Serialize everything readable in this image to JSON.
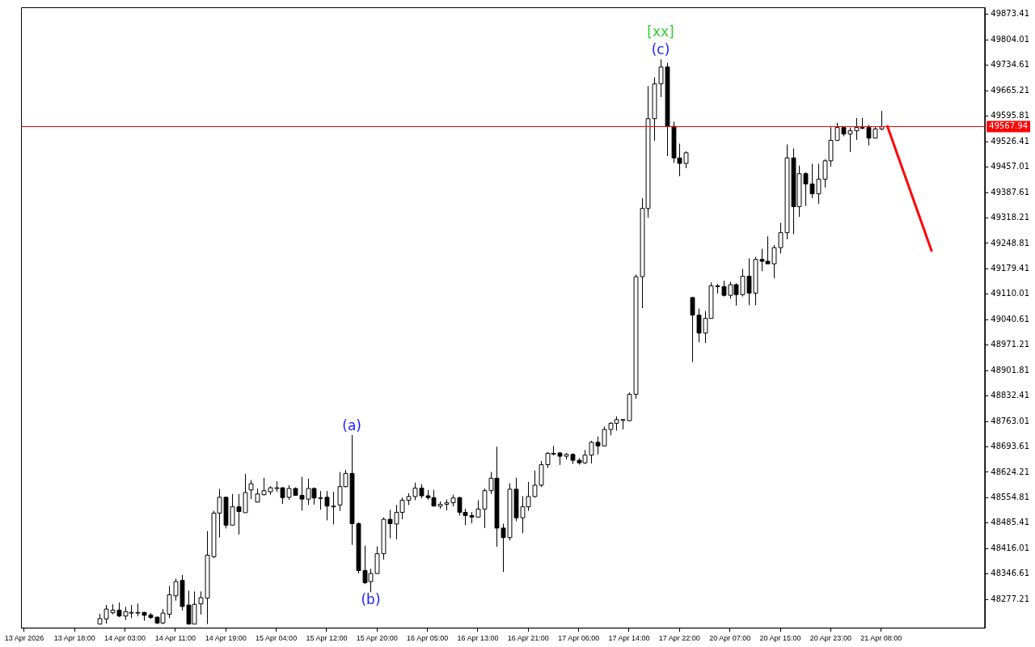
{
  "chart_data": {
    "type": "candlestick",
    "categories": [
      "13 Apr 2026",
      null,
      null,
      null,
      null,
      null,
      null,
      null,
      "13 Apr 18:00",
      null,
      null,
      null,
      null,
      null,
      null,
      null,
      "14 Apr 03:00",
      null,
      null,
      null,
      null,
      null,
      null,
      null,
      "14 Apr 11:00",
      null,
      null,
      null,
      null,
      null,
      null,
      null,
      "14 Apr 19:00",
      null,
      null,
      null,
      null,
      null,
      null,
      null,
      "15 Apr 04:00",
      null,
      null,
      null,
      null,
      null,
      null,
      null,
      "15 Apr 12:00",
      null,
      null,
      null,
      null,
      null,
      null,
      null,
      "15 Apr 20:00",
      null,
      null,
      null,
      null,
      null,
      null,
      null,
      "16 Apr 05:00",
      null,
      null,
      null,
      null,
      null,
      null,
      null,
      "16 Apr 13:00",
      null,
      null,
      null,
      null,
      null,
      null,
      null,
      "16 Apr 21:00",
      null,
      null,
      null,
      null,
      null,
      null,
      null,
      "17 Apr 06:00",
      null,
      null,
      null,
      null,
      null,
      null,
      null,
      "17 Apr 14:00",
      null,
      null,
      null,
      null,
      null,
      null,
      null,
      "17 Apr 22:00",
      null,
      null,
      null,
      null,
      null,
      null,
      null,
      "20 Apr 07:00",
      null,
      null,
      null,
      null,
      null,
      null,
      null,
      "20 Apr 15:00",
      null,
      null,
      null,
      null,
      null,
      null,
      null,
      "20 Apr 23:00",
      null,
      null,
      null,
      null,
      null,
      null,
      null,
      "21 Apr 08:00",
      null,
      null,
      null,
      null,
      null,
      null,
      null,
      null,
      null,
      null,
      null,
      null,
      null,
      null,
      null,
      null
    ],
    "ohlc": [
      null,
      null,
      null,
      null,
      null,
      null,
      null,
      null,
      null,
      null,
      null,
      null,
      [
        48210,
        48238,
        48210,
        48225
      ],
      [
        48224,
        48262,
        48211,
        48251
      ],
      [
        48241,
        48264,
        48237,
        48248
      ],
      [
        48248,
        48269,
        48229,
        48232
      ],
      [
        48232,
        48257,
        48221,
        48244
      ],
      [
        48242,
        48262,
        48226,
        48242
      ],
      [
        48242,
        48266,
        48231,
        48242
      ],
      [
        48242,
        48243,
        48219,
        48234
      ],
      [
        48235,
        48240,
        48224,
        48228
      ],
      [
        48229,
        48230,
        48210,
        48213
      ],
      [
        48213,
        48251,
        48210,
        48240
      ],
      [
        48237,
        48314,
        48226,
        48290
      ],
      [
        48287,
        48334,
        48274,
        48326
      ],
      [
        48329,
        48344,
        48247,
        48258
      ],
      [
        48262,
        48301,
        48210,
        48210
      ],
      [
        48210,
        48299,
        48210,
        48264
      ],
      [
        48265,
        48299,
        48236,
        48282
      ],
      [
        48281,
        48464,
        48210,
        48398
      ],
      [
        48394,
        48519,
        48390,
        48513
      ],
      [
        48513,
        48579,
        48446,
        48556
      ],
      [
        48556,
        48557,
        48471,
        48480
      ],
      [
        48480,
        48565,
        48480,
        48530
      ],
      [
        48530,
        48565,
        48454,
        48517
      ],
      [
        48514,
        48620,
        48514,
        48569
      ],
      [
        48576,
        48603,
        48551,
        48593
      ],
      [
        48543,
        48580,
        48542,
        48565
      ],
      [
        48563,
        48609,
        48561,
        48574
      ],
      [
        48571,
        48586,
        48563,
        48582
      ],
      [
        48582,
        48600,
        48571,
        48582
      ],
      [
        48582,
        48583,
        48538,
        48555
      ],
      [
        48556,
        48589,
        48549,
        48580
      ],
      [
        48580,
        48583,
        48560,
        48561
      ],
      [
        48561,
        48612,
        48520,
        48551
      ],
      [
        48551,
        48607,
        48535,
        48580
      ],
      [
        48580,
        48583,
        48536,
        48554
      ],
      [
        48555,
        48573,
        48522,
        48555
      ],
      [
        48556,
        48573,
        48493,
        48532
      ],
      [
        48532,
        48571,
        48482,
        48532
      ],
      [
        48535,
        48625,
        48519,
        48585
      ],
      [
        48585,
        48631,
        48583,
        48621
      ],
      [
        48621,
        48726,
        48426,
        48484
      ],
      [
        48484,
        48488,
        48348,
        48356
      ],
      [
        48356,
        48424,
        48319,
        48323
      ],
      [
        48326,
        48361,
        48297,
        48348
      ],
      [
        48348,
        48422,
        48348,
        48402
      ],
      [
        48402,
        48501,
        48386,
        48496
      ],
      [
        48496,
        48522,
        48444,
        48484
      ],
      [
        48483,
        48535,
        48441,
        48515
      ],
      [
        48515,
        48555,
        48496,
        48548
      ],
      [
        48548,
        48567,
        48535,
        48558
      ],
      [
        48558,
        48596,
        48548,
        48581
      ],
      [
        48581,
        48592,
        48553,
        48560
      ],
      [
        48560,
        48576,
        48549,
        48555
      ],
      [
        48555,
        48576,
        48532,
        48532
      ],
      [
        48532,
        48545,
        48525,
        48537
      ],
      [
        48537,
        48550,
        48520,
        48541
      ],
      [
        48541,
        48563,
        48531,
        48554
      ],
      [
        48555,
        48558,
        48506,
        48515
      ],
      [
        48515,
        48525,
        48480,
        48506
      ],
      [
        48506,
        48516,
        48485,
        48502
      ],
      [
        48502,
        48548,
        48502,
        48524
      ],
      [
        48524,
        48580,
        48472,
        48574
      ],
      [
        48574,
        48625,
        48565,
        48608
      ],
      [
        48608,
        48694,
        48421,
        48472
      ],
      [
        48472,
        48484,
        48352,
        48446
      ],
      [
        48446,
        48594,
        48438,
        48578
      ],
      [
        48578,
        48609,
        48491,
        48500
      ],
      [
        48500,
        48559,
        48458,
        48530
      ],
      [
        48530,
        48598,
        48519,
        48558
      ],
      [
        48558,
        48629,
        48555,
        48589
      ],
      [
        48589,
        48655,
        48584,
        48645
      ],
      [
        48645,
        48679,
        48636,
        48676
      ],
      [
        48676,
        48696,
        48670,
        48676
      ],
      [
        48677,
        48679,
        48644,
        48668
      ],
      [
        48668,
        48677,
        48659,
        48673
      ],
      [
        48673,
        48676,
        48647,
        48657
      ],
      [
        48657,
        48663,
        48645,
        48650
      ],
      [
        48650,
        48685,
        48647,
        48671
      ],
      [
        48671,
        48710,
        48648,
        48706
      ],
      [
        48706,
        48722,
        48673,
        48696
      ],
      [
        48696,
        48749,
        48696,
        48741
      ],
      [
        48741,
        48761,
        48725,
        48758
      ],
      [
        48758,
        48777,
        48738,
        48768
      ],
      [
        48768,
        48769,
        48741,
        48768
      ],
      [
        48765,
        48842,
        48763,
        48837
      ],
      [
        48837,
        49164,
        48825,
        49158
      ],
      [
        49158,
        49372,
        49072,
        49344
      ],
      [
        49344,
        49678,
        49319,
        49589
      ],
      [
        49589,
        49702,
        49529,
        49684
      ],
      [
        49684,
        49751,
        49648,
        49730
      ],
      [
        49730,
        49742,
        49487,
        49568
      ],
      [
        49568,
        49581,
        49468,
        49482
      ],
      [
        49482,
        49521,
        49432,
        49467
      ],
      [
        49467,
        49500,
        49454,
        49496
      ],
      [
        49101,
        49102,
        48925,
        49053
      ],
      [
        49053,
        49071,
        48979,
        49004
      ],
      [
        49004,
        49064,
        48977,
        49044
      ],
      [
        49044,
        49142,
        49044,
        49133
      ],
      [
        49133,
        49138,
        49112,
        49133
      ],
      [
        49131,
        49147,
        49104,
        49107
      ],
      [
        49107,
        49144,
        49098,
        49136
      ],
      [
        49136,
        49140,
        49079,
        49109
      ],
      [
        49109,
        49179,
        49104,
        49159
      ],
      [
        49159,
        49208,
        49080,
        49113
      ],
      [
        49113,
        49212,
        49080,
        49205
      ],
      [
        49205,
        49234,
        49173,
        49200
      ],
      [
        49200,
        49268,
        49193,
        49193
      ],
      [
        49193,
        49244,
        49154,
        49237
      ],
      [
        49237,
        49305,
        49221,
        49278
      ],
      [
        49278,
        49519,
        49260,
        49482
      ],
      [
        49482,
        49508,
        49274,
        49349
      ],
      [
        49349,
        49461,
        49321,
        49439
      ],
      [
        49439,
        49443,
        49351,
        49411
      ],
      [
        49411,
        49466,
        49372,
        49384
      ],
      [
        49384,
        49466,
        49357,
        49424
      ],
      [
        49424,
        49478,
        49401,
        49474
      ],
      [
        49474,
        49566,
        49458,
        49530
      ],
      [
        49530,
        49578,
        49530,
        49565
      ],
      [
        49565,
        49567,
        49541,
        49547
      ],
      [
        49547,
        49565,
        49498,
        49556
      ],
      [
        49556,
        49591,
        49531,
        49565
      ],
      [
        49565,
        49591,
        49560,
        49565
      ],
      [
        49565,
        49572,
        49516,
        49536
      ],
      [
        49536,
        49567,
        49536,
        49561
      ],
      [
        49561,
        49610,
        49557,
        49567
      ],
      null,
      null,
      null,
      null,
      null,
      null,
      null,
      null,
      null,
      null,
      null,
      null,
      null,
      null,
      null,
      null
    ],
    "series": [
      {
        "type": "line",
        "color": "#ff0000",
        "values": [
          null,
          null,
          null,
          null,
          null,
          null,
          null,
          null,
          null,
          null,
          null,
          null,
          null,
          null,
          null,
          null,
          null,
          null,
          null,
          null,
          null,
          null,
          null,
          null,
          null,
          null,
          null,
          null,
          null,
          null,
          null,
          null,
          null,
          null,
          null,
          null,
          null,
          null,
          null,
          null,
          null,
          null,
          null,
          null,
          null,
          null,
          null,
          null,
          null,
          null,
          null,
          null,
          null,
          null,
          null,
          null,
          null,
          null,
          null,
          null,
          null,
          null,
          null,
          null,
          null,
          null,
          null,
          null,
          null,
          null,
          null,
          null,
          null,
          null,
          null,
          null,
          null,
          null,
          null,
          null,
          null,
          null,
          null,
          null,
          null,
          null,
          null,
          null,
          null,
          null,
          null,
          null,
          null,
          null,
          null,
          null,
          null,
          null,
          null,
          null,
          null,
          null,
          null,
          null,
          null,
          null,
          null,
          null,
          null,
          null,
          null,
          null,
          null,
          null,
          null,
          null,
          null,
          null,
          null,
          null,
          null,
          null,
          null,
          null,
          null,
          null,
          null,
          null,
          null,
          null,
          null,
          null,
          null,
          null,
          null,
          null,
          null,
          49568,
          null,
          null,
          null,
          null,
          null,
          null,
          49229,
          null,
          null,
          null,
          null,
          null,
          null,
          null,
          null
        ]
      }
    ],
    "ylim": [
      48200,
      49893
    ],
    "yticks": [
      49873.41,
      49804.01,
      49734.61,
      49665.21,
      49595.81,
      49526.41,
      49457.01,
      49387.61,
      49318.21,
      49248.81,
      49179.41,
      49110.01,
      49040.61,
      48971.21,
      48901.81,
      48832.41,
      48763.01,
      48693.61,
      48624.21,
      48554.81,
      48485.41,
      48416.01,
      48346.61,
      48277.21
    ],
    "ref_lines": [
      {
        "axis": "y",
        "value": 49567.94,
        "label": "49567.94",
        "color": "#ff0000"
      }
    ],
    "annotations": [
      {
        "text": "(a)",
        "y": 48726
      },
      {
        "text": "(b)",
        "y": 48297
      },
      {
        "text": "(c)",
        "y": 49751
      },
      {
        "text": "[xx]",
        "y": 49751
      }
    ]
  }
}
